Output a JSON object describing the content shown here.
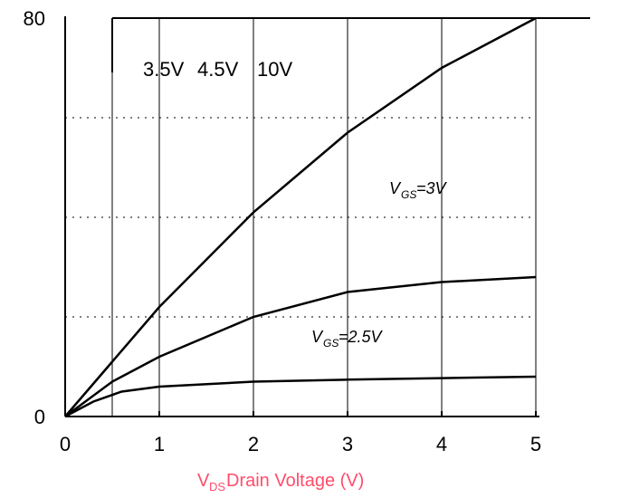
{
  "chart_data": {
    "type": "line",
    "xlabel": "V",
    "xlabel_sub": "DS",
    "xlabel_rest": " Drain Voltage (V)",
    "ylabel": "",
    "xlim": [
      0,
      5
    ],
    "ylim": [
      0,
      80
    ],
    "x_ticks": [
      "0",
      "1",
      "2",
      "3",
      "4",
      "5"
    ],
    "y_ticks": [
      "0",
      "80"
    ],
    "grid": true,
    "series": [
      {
        "name": "10V",
        "x": [
          0,
          0.5,
          1,
          2,
          3,
          4,
          5
        ],
        "y": [
          0,
          11,
          22,
          41,
          57,
          70,
          80
        ]
      },
      {
        "name": "4.5V",
        "x": [
          0,
          0.5,
          1,
          2,
          3,
          4,
          5
        ],
        "y": [
          0,
          7,
          12,
          20,
          25,
          27,
          28
        ]
      },
      {
        "name": "3.5V",
        "x": [
          0,
          0.3,
          0.6,
          1,
          2,
          3,
          4,
          5
        ],
        "y": [
          0,
          3,
          5,
          6,
          7,
          7.4,
          7.7,
          8
        ]
      }
    ],
    "curve_labels": [
      "3.5V",
      "4.5V",
      "10V"
    ],
    "annotations": [
      "V",
      "GS",
      "=3V",
      "=2.5V"
    ],
    "colors": {
      "curves": "#000000",
      "axis_title": "#ff4d6a",
      "grid": "#000000"
    }
  }
}
